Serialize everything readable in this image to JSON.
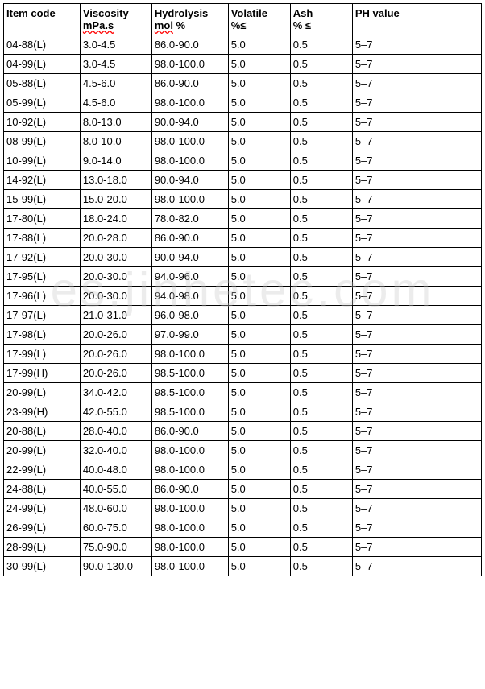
{
  "table": {
    "columns": [
      {
        "label": "Item code",
        "sub": "",
        "width": "16%"
      },
      {
        "label": "Viscosity",
        "sub": "mPa.s",
        "width": "15%",
        "squiggle": true
      },
      {
        "label": "Hydrolysis",
        "sub": "mol %",
        "width": "16%",
        "squiggle": true
      },
      {
        "label": "Volatile",
        "sub": "%≤",
        "width": "13%"
      },
      {
        "label": "Ash",
        "sub": "% ≤",
        "width": "13%"
      },
      {
        "label": "PH value",
        "sub": "",
        "width": "27%"
      }
    ],
    "rows": [
      [
        "04-88(L)",
        "3.0-4.5",
        "86.0-90.0",
        "5.0",
        "0.5",
        "5–7"
      ],
      [
        "04-99(L)",
        "3.0-4.5",
        "98.0-100.0",
        "5.0",
        "0.5",
        "5–7"
      ],
      [
        "05-88(L)",
        "4.5-6.0",
        "86.0-90.0",
        "5.0",
        "0.5",
        "5–7"
      ],
      [
        "05-99(L)",
        "4.5-6.0",
        "98.0-100.0",
        "5.0",
        "0.5",
        "5–7"
      ],
      [
        "10-92(L)",
        "8.0-13.0",
        "90.0-94.0",
        "5.0",
        "0.5",
        "5–7"
      ],
      [
        "08-99(L)",
        "8.0-10.0",
        "98.0-100.0",
        "5.0",
        "0.5",
        "5–7"
      ],
      [
        "10-99(L)",
        "9.0-14.0",
        "98.0-100.0",
        "5.0",
        "0.5",
        "5–7"
      ],
      [
        "14-92(L)",
        "13.0-18.0",
        "90.0-94.0",
        "5.0",
        "0.5",
        "5–7"
      ],
      [
        "15-99(L)",
        "15.0-20.0",
        "98.0-100.0",
        "5.0",
        "0.5",
        "5–7"
      ],
      [
        "17-80(L)",
        "18.0-24.0",
        "78.0-82.0",
        "5.0",
        "0.5",
        "5–7"
      ],
      [
        "17-88(L)",
        "20.0-28.0",
        "86.0-90.0",
        "5.0",
        "0.5",
        "5–7"
      ],
      [
        "17-92(L)",
        "20.0-30.0",
        "90.0-94.0",
        "5.0",
        "0.5",
        "5–7"
      ],
      [
        "17-95(L)",
        "20.0-30.0",
        "94.0-96.0",
        "5.0",
        "0.5",
        "5–7"
      ],
      [
        "17-96(L)",
        "20.0-30.0",
        "94.0-98.0",
        "5.0",
        "0.5",
        "5–7"
      ],
      [
        "17-97(L)",
        "21.0-31.0",
        "96.0-98.0",
        "5.0",
        "0.5",
        "5–7"
      ],
      [
        "17-98(L)",
        "20.0-26.0",
        "97.0-99.0",
        "5.0",
        "0.5",
        "5–7"
      ],
      [
        "17-99(L)",
        "20.0-26.0",
        "98.0-100.0",
        "5.0",
        "0.5",
        "5–7"
      ],
      [
        "17-99(H)",
        "20.0-26.0",
        "98.5-100.0",
        "5.0",
        "0.5",
        "5–7"
      ],
      [
        "20-99(L)",
        "34.0-42.0",
        "98.5-100.0",
        "5.0",
        "0.5",
        "5–7"
      ],
      [
        "23-99(H)",
        "42.0-55.0",
        "98.5-100.0",
        "5.0",
        "0.5",
        "5–7"
      ],
      [
        "20-88(L)",
        "28.0-40.0",
        "86.0-90.0",
        "5.0",
        "0.5",
        "5–7"
      ],
      [
        "20-99(L)",
        "32.0-40.0",
        "98.0-100.0",
        "5.0",
        "0.5",
        "5–7"
      ],
      [
        "22-99(L)",
        "40.0-48.0",
        "98.0-100.0",
        "5.0",
        "0.5",
        "5–7"
      ],
      [
        "24-88(L)",
        "40.0-55.0",
        "86.0-90.0",
        "5.0",
        "0.5",
        "5–7"
      ],
      [
        "24-99(L)",
        "48.0-60.0",
        "98.0-100.0",
        "5.0",
        "0.5",
        "5–7"
      ],
      [
        "26-99(L)",
        "60.0-75.0",
        "98.0-100.0",
        "5.0",
        "0.5",
        "5–7"
      ],
      [
        "28-99(L)",
        "75.0-90.0",
        "98.0-100.0",
        "5.0",
        "0.5",
        "5–7"
      ],
      [
        "30-99(L)",
        "90.0-130.0",
        "98.0-100.0",
        "5.0",
        "0.5",
        "5–7"
      ]
    ],
    "border_color": "#000000",
    "background_color": "#ffffff",
    "font_size": 13,
    "header_font_weight": "bold"
  },
  "watermark": {
    "text": "es.jinhetec.com",
    "color": "rgba(200,200,200,0.35)",
    "font_size": 60
  }
}
